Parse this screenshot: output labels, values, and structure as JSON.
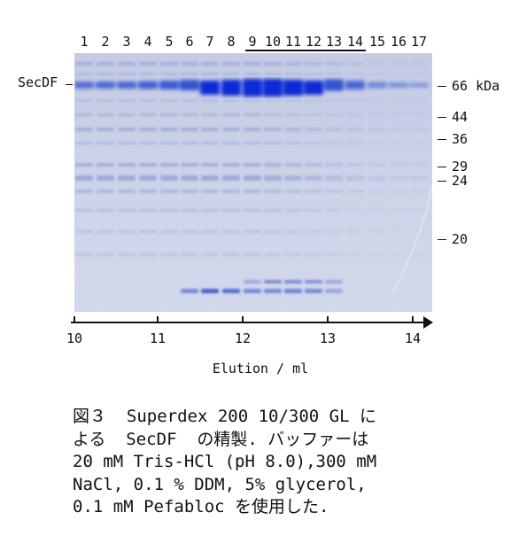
{
  "figure": {
    "lane_numbers": [
      "1",
      "2",
      "3",
      "4",
      "5",
      "6",
      "7",
      "8",
      "9",
      "10",
      "11",
      "12",
      "13",
      "14",
      "15",
      "16",
      "17"
    ],
    "protein_label": "SecDF",
    "markers": [
      {
        "label": "66 kDa"
      },
      {
        "label": "44"
      },
      {
        "label": "36"
      },
      {
        "label": "29"
      },
      {
        "label": "24"
      },
      {
        "label": "20"
      }
    ],
    "axis": {
      "ticks": [
        "10",
        "11",
        "12",
        "13",
        "14"
      ],
      "title": "Elution / ml"
    },
    "colors": {
      "gel_bg": "#c9cfe4",
      "band": "#2f4fc7",
      "band_dark": "#0a2bd6"
    }
  },
  "caption": {
    "lines": [
      "図３  Superdex 200 10/300 GL に",
      "よる  SecDF  の精製. バッファーは",
      "20 mM Tris-HCl (pH 8.0),300 mM",
      "NaCl, 0.1 % DDM, 5% glycerol,",
      "0.1 mM Pefabloc を使用した."
    ]
  }
}
